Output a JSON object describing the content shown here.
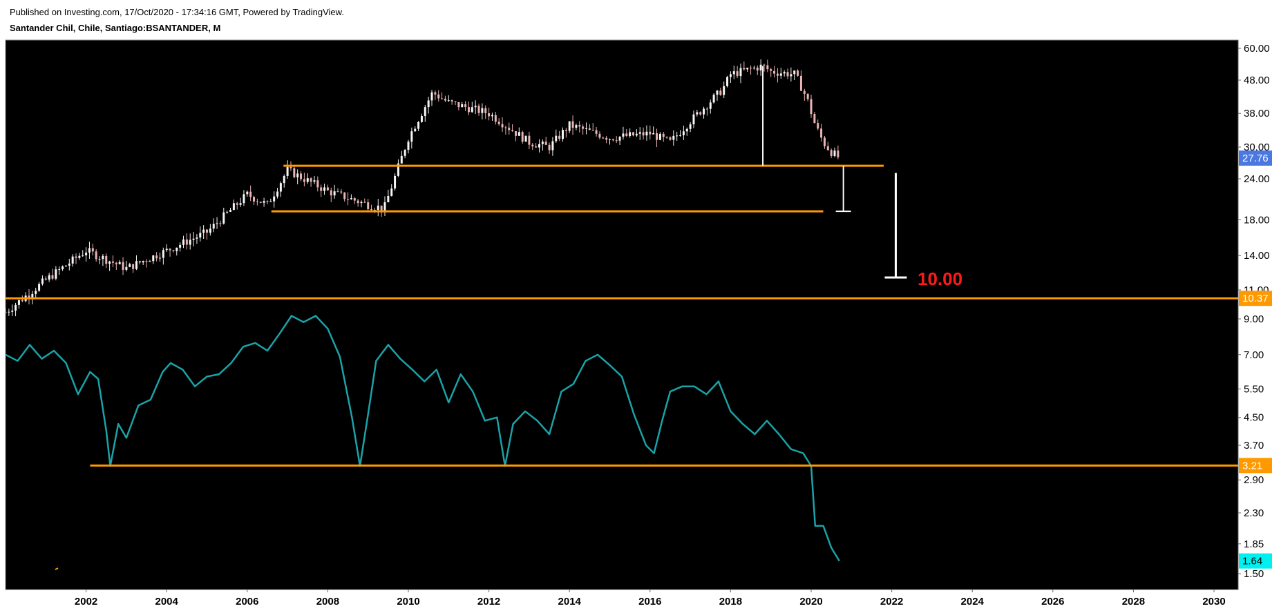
{
  "header": {
    "published": "Published on Investing.com, 17/Oct/2020 - 17:34:16 GMT, Powered by TradingView.",
    "symbol": "Santander Chil, Chile, Santiago:BSANTANDER, M"
  },
  "colors": {
    "background": "#000000",
    "candle_up": "#f5f5f5",
    "candle_down": "#e8b4b4",
    "oscillator": "#1aa3a8",
    "level_line": "#ff9900",
    "measure": "#ffffff",
    "target_text": "#ff1a1a",
    "last_price_badge": "#4a78e0",
    "last_osc_badge": "#00f0f0"
  },
  "chart_data": [
    {
      "type": "candlestick",
      "title": "",
      "scale": "log",
      "x_range": [
        2000.0,
        2030.6
      ],
      "ylim": [
        10.0,
        62.0
      ],
      "y_ticks": [
        "60.00",
        "48.00",
        "38.00",
        "30.00",
        "24.00",
        "18.00",
        "14.00",
        "11.00"
      ],
      "last_value": "27.76",
      "level_label": "10.37",
      "target_label": "10.00",
      "price_close_approx": {
        "x": [
          2000.0,
          2001.0,
          2002.0,
          2003.0,
          2004.0,
          2005.0,
          2006.0,
          2006.5,
          2007.0,
          2008.0,
          2009.0,
          2009.4,
          2010.0,
          2010.6,
          2011.0,
          2012.0,
          2013.0,
          2013.5,
          2014.0,
          2015.0,
          2016.0,
          2016.5,
          2017.0,
          2017.8,
          2018.0,
          2018.8,
          2019.0,
          2019.6,
          2019.9,
          2020.1,
          2020.3,
          2020.5,
          2020.7
        ],
        "y": [
          9.4,
          11.8,
          14.5,
          12.8,
          14.5,
          16.5,
          21.5,
          20.0,
          25.5,
          22.0,
          20.0,
          19.5,
          32.0,
          44.0,
          41.0,
          38.0,
          31.0,
          30.0,
          35.0,
          32.0,
          33.0,
          31.0,
          36.0,
          45.0,
          50.0,
          53.0,
          51.0,
          50.0,
          42.0,
          35.0,
          31.0,
          29.0,
          27.76
        ]
      },
      "levels": [
        {
          "value": 26.3,
          "x_start": 2006.9,
          "x_end": 2021.8
        },
        {
          "value": 19.1,
          "x_start": 2006.6,
          "x_end": 2020.3
        },
        {
          "value": 10.37,
          "x_start": 2000.0,
          "x_end": 2030.6
        }
      ],
      "measures": [
        {
          "x": 2018.8,
          "from": 53.0,
          "to": 26.3
        },
        {
          "x": 2020.8,
          "from": 26.3,
          "to": 19.1
        },
        {
          "x": 2022.1,
          "from": 25.0,
          "to": 12.0
        }
      ]
    },
    {
      "type": "line",
      "title": "",
      "scale": "log",
      "ylim": [
        1.38,
        10.5
      ],
      "y_ticks": [
        "9.00",
        "7.00",
        "5.50",
        "4.50",
        "3.70",
        "2.90",
        "2.30",
        "1.85",
        "1.50"
      ],
      "last_value": "1.64",
      "level_label": "3.21",
      "levels": [
        {
          "value": 3.21,
          "x_start": 2002.1,
          "x_end": 2030.6
        }
      ],
      "x": [
        2000.0,
        2000.3,
        2000.6,
        2000.9,
        2001.2,
        2001.5,
        2001.8,
        2002.1,
        2002.3,
        2002.5,
        2002.6,
        2002.8,
        2003.0,
        2003.3,
        2003.6,
        2003.9,
        2004.1,
        2004.4,
        2004.7,
        2005.0,
        2005.3,
        2005.6,
        2005.9,
        2006.2,
        2006.5,
        2006.8,
        2007.1,
        2007.4,
        2007.7,
        2008.0,
        2008.3,
        2008.6,
        2008.8,
        2009.0,
        2009.2,
        2009.5,
        2009.8,
        2010.1,
        2010.4,
        2010.7,
        2011.0,
        2011.3,
        2011.6,
        2011.9,
        2012.2,
        2012.4,
        2012.6,
        2012.9,
        2013.2,
        2013.5,
        2013.8,
        2014.1,
        2014.4,
        2014.7,
        2015.0,
        2015.3,
        2015.6,
        2015.9,
        2016.1,
        2016.3,
        2016.5,
        2016.8,
        2017.1,
        2017.4,
        2017.7,
        2018.0,
        2018.3,
        2018.6,
        2018.9,
        2019.2,
        2019.5,
        2019.8,
        2020.0,
        2020.1,
        2020.3,
        2020.5,
        2020.7
      ],
      "y": [
        7.0,
        6.7,
        7.5,
        6.8,
        7.2,
        6.6,
        5.3,
        6.2,
        5.9,
        4.1,
        3.2,
        4.3,
        3.9,
        4.9,
        5.1,
        6.2,
        6.6,
        6.3,
        5.6,
        6.0,
        6.1,
        6.6,
        7.4,
        7.6,
        7.2,
        8.1,
        9.2,
        8.8,
        9.2,
        8.4,
        6.9,
        4.5,
        3.2,
        4.6,
        6.7,
        7.5,
        6.8,
        6.3,
        5.8,
        6.3,
        5.0,
        6.1,
        5.4,
        4.4,
        4.5,
        3.2,
        4.3,
        4.7,
        4.4,
        4.0,
        5.4,
        5.7,
        6.7,
        7.0,
        6.5,
        6.0,
        4.6,
        3.7,
        3.5,
        4.4,
        5.4,
        5.6,
        5.6,
        5.3,
        5.8,
        4.7,
        4.3,
        4.0,
        4.4,
        4.0,
        3.6,
        3.5,
        3.2,
        2.1,
        2.1,
        1.8,
        1.64
      ]
    }
  ],
  "x_axis": {
    "ticks": [
      "2002",
      "2004",
      "2006",
      "2008",
      "2010",
      "2012",
      "2014",
      "2016",
      "2018",
      "2020",
      "2022",
      "2024",
      "2026",
      "2028",
      "2030"
    ]
  }
}
